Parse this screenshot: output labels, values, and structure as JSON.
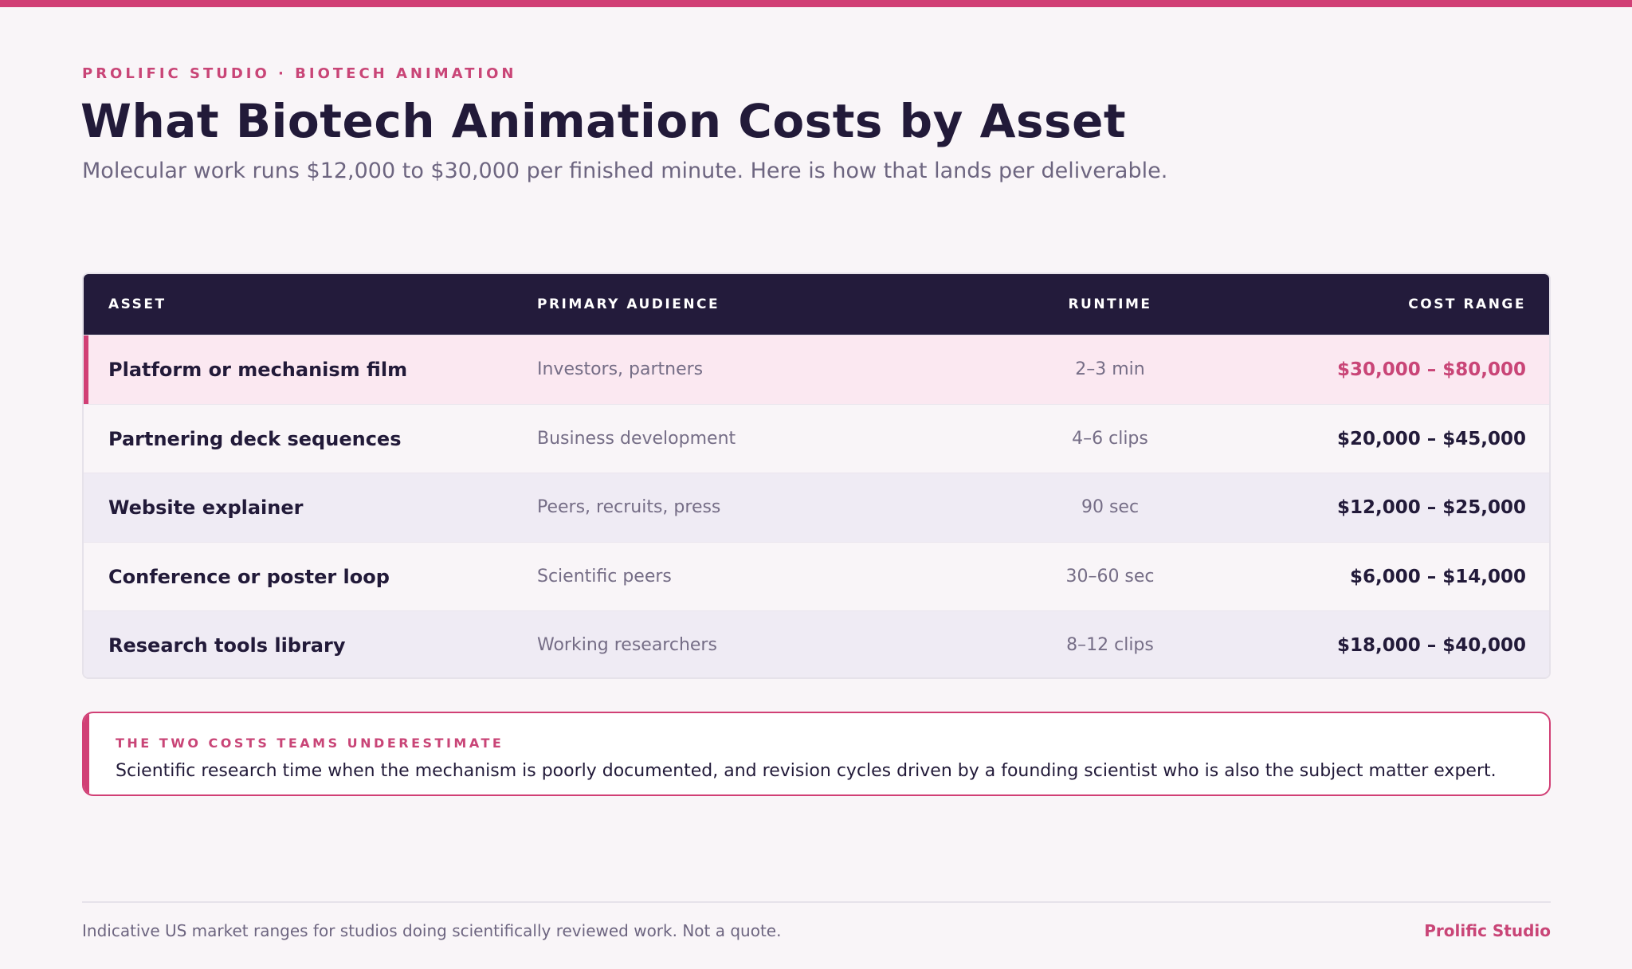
{
  "colors": {
    "accent": "#d13f75",
    "header_bg": "#231b3b",
    "text_dark": "#221a39",
    "text_muted": "#6d6580",
    "highlight_row": "#fbe8f1",
    "background": "#f9f5f8"
  },
  "header": {
    "eyebrow": "PROLIFIC STUDIO · BIOTECH ANIMATION",
    "title": "What Biotech Animation Costs by Asset",
    "subtitle": "Molecular work runs $12,000 to $30,000 per finished minute. Here is how that lands per deliverable."
  },
  "table": {
    "columns": [
      "ASSET",
      "PRIMARY AUDIENCE",
      "RUNTIME",
      "COST RANGE"
    ],
    "rows": [
      {
        "asset": "Platform or mechanism film",
        "audience": "Investors, partners",
        "runtime": "2–3 min",
        "cost": "$30,000 – $80,000"
      },
      {
        "asset": "Partnering deck sequences",
        "audience": "Business development",
        "runtime": "4–6 clips",
        "cost": "$20,000 – $45,000"
      },
      {
        "asset": "Website explainer",
        "audience": "Peers, recruits, press",
        "runtime": "90 sec",
        "cost": "$12,000 – $25,000"
      },
      {
        "asset": "Conference or poster loop",
        "audience": "Scientific peers",
        "runtime": "30–60 sec",
        "cost": "$6,000 – $14,000"
      },
      {
        "asset": "Research tools library",
        "audience": "Working researchers",
        "runtime": "8–12 clips",
        "cost": "$18,000 – $40,000"
      }
    ]
  },
  "callout": {
    "label": "THE TWO COSTS TEAMS UNDERESTIMATE",
    "text": "Scientific research time when the mechanism is poorly documented, and revision cycles driven by a founding scientist who is also the subject matter expert."
  },
  "footer": {
    "note": "Indicative US market ranges for studios doing scientifically reviewed work. Not a quote.",
    "brand": "Prolific Studio"
  }
}
